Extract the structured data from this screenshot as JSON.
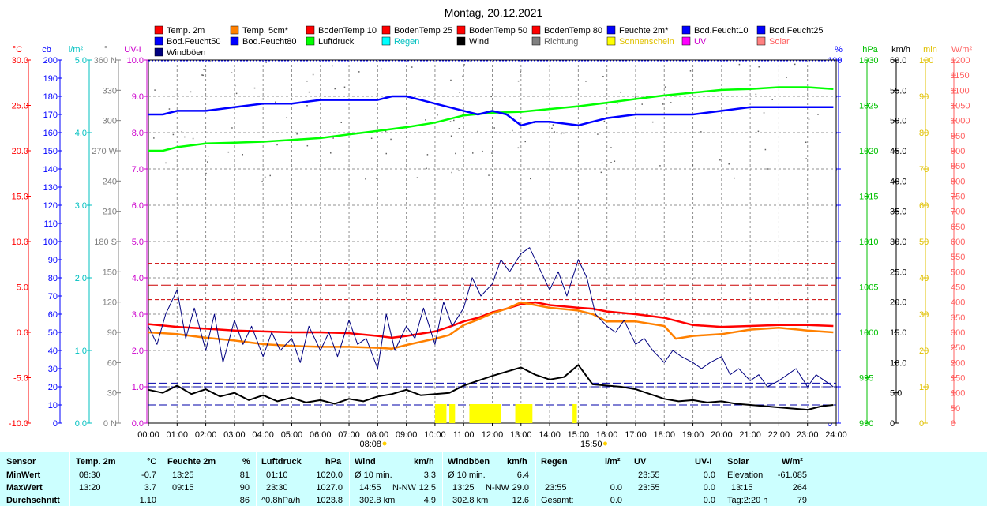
{
  "title": "Montag, 20.12.2021",
  "chart_data": {
    "type": "line",
    "x_ticks": [
      "00:00",
      "01:00",
      "02:00",
      "03:00",
      "04:00",
      "05:00",
      "06:00",
      "07:00",
      "08:00",
      "09:00",
      "10:00",
      "11:00",
      "12:00",
      "13:00",
      "14:00",
      "15:00",
      "16:00",
      "17:00",
      "18:00",
      "19:00",
      "20:00",
      "21:00",
      "22:00",
      "23:00",
      "24:00"
    ],
    "sun_labels": {
      "sunrise": "08:08",
      "sunset": "15:50"
    },
    "legend": [
      {
        "name": "Temp. 2m",
        "color": "#ff0000"
      },
      {
        "name": "Temp. 5cm*",
        "color": "#ff8000"
      },
      {
        "name": "BodenTemp 10",
        "color": "#ff0000"
      },
      {
        "name": "BodenTemp 25",
        "color": "#ff0000"
      },
      {
        "name": "BodenTemp 50",
        "color": "#ff0000"
      },
      {
        "name": "BodenTemp 80",
        "color": "#ff0000"
      },
      {
        "name": "Feuchte 2m*",
        "color": "#0000ff"
      },
      {
        "name": "Bod.Feucht10",
        "color": "#0000ff"
      },
      {
        "name": "Bod.Feucht25",
        "color": "#0000ff"
      },
      {
        "name": "Bod.Feucht50",
        "color": "#0000ff"
      },
      {
        "name": "Bod.Feucht80",
        "color": "#0000ff"
      },
      {
        "name": "Luftdruck",
        "color": "#00ff00"
      },
      {
        "name": "Regen",
        "color": "#00ffff"
      },
      {
        "name": "Wind",
        "color": "#000000"
      },
      {
        "name": "Richtung",
        "color": "#808080"
      },
      {
        "name": "Sonnenschein",
        "color": "#ffff00"
      },
      {
        "name": "UV",
        "color": "#ff00ff"
      },
      {
        "name": "Solar",
        "color": "#ff8080"
      },
      {
        "name": "Windböen",
        "color": "#000080"
      }
    ],
    "axes": {
      "temp": {
        "unit": "°C",
        "color": "#ff0000",
        "ticks": [
          "30.0",
          "25.0",
          "20.0",
          "15.0",
          "10.0",
          "5.0",
          "0.0",
          "-5.0",
          "-10.0"
        ],
        "range": [
          -10,
          30
        ]
      },
      "cloud": {
        "unit": "cb",
        "color": "#0000ff",
        "ticks": [
          "200",
          "190",
          "180",
          "170",
          "160",
          "150",
          "140",
          "130",
          "120",
          "110",
          "100",
          "90",
          "80",
          "70",
          "60",
          "50",
          "40",
          "30",
          "20",
          "10",
          "0"
        ],
        "range": [
          0,
          200
        ]
      },
      "rain": {
        "unit": "l/m²",
        "color": "#00c0c0",
        "ticks": [
          "5.0",
          "4.0",
          "3.0",
          "2.0",
          "1.0",
          "0.0"
        ],
        "range": [
          0,
          5
        ]
      },
      "dir": {
        "unit": "°",
        "color": "#808080",
        "ticks": [
          "360 N",
          "330",
          "300",
          "270 W",
          "240",
          "210",
          "180 S",
          "150",
          "120",
          "90",
          "60",
          "30",
          "0 N"
        ],
        "range": [
          0,
          360
        ]
      },
      "uv": {
        "unit": "UV-I",
        "color": "#cc00cc",
        "ticks": [
          "10.0",
          "9.0",
          "8.0",
          "7.0",
          "6.0",
          "5.0",
          "4.0",
          "3.0",
          "2.0",
          "1.0",
          "0.0"
        ],
        "range": [
          0,
          10
        ]
      },
      "hum": {
        "unit": "%",
        "color": "#0000ff",
        "ticks": [
          "100",
          "90",
          "80",
          "70",
          "60",
          "50",
          "40",
          "30",
          "20",
          "10",
          "0"
        ],
        "range": [
          0,
          100
        ]
      },
      "press": {
        "unit": "hPa",
        "color": "#00c000",
        "ticks": [
          "1030",
          "1025",
          "1020",
          "1015",
          "1010",
          "1005",
          "1000",
          "995",
          "990"
        ],
        "range": [
          990,
          1030
        ]
      },
      "wind": {
        "unit": "km/h",
        "color": "#000000",
        "ticks": [
          "60.0",
          "55.0",
          "50.0",
          "45.0",
          "40.0",
          "35.0",
          "30.0",
          "25.0",
          "20.0",
          "15.0",
          "10.0",
          "5.0",
          "0"
        ],
        "range": [
          0,
          60
        ]
      },
      "sun": {
        "unit": "min",
        "color": "#e0c000",
        "ticks": [
          "100",
          "90",
          "80",
          "70",
          "60",
          "50",
          "40",
          "30",
          "20",
          "10",
          "0"
        ],
        "range": [
          0,
          100
        ]
      },
      "solar": {
        "unit": "W/m²",
        "color": "#ff6060",
        "ticks": [
          "1200",
          "1150",
          "1100",
          "1050",
          "1000",
          "950",
          "900",
          "850",
          "800",
          "750",
          "700",
          "650",
          "600",
          "550",
          "500",
          "450",
          "400",
          "350",
          "300",
          "250",
          "200",
          "150",
          "100",
          "50",
          "0"
        ],
        "range": [
          0,
          1200
        ]
      }
    },
    "series": [
      {
        "name": "Temp. 2m",
        "axis": "temp",
        "x": [
          0,
          1,
          2,
          3,
          4,
          5,
          6,
          7,
          8,
          8.5,
          9,
          10,
          10.5,
          11,
          11.5,
          12,
          12.5,
          13,
          13.5,
          14,
          15,
          15.5,
          16,
          17,
          18,
          19,
          20,
          21,
          22,
          23,
          23.9
        ],
        "y": [
          0.9,
          0.6,
          0.4,
          0.2,
          0.1,
          0.0,
          0.0,
          -0.1,
          -0.4,
          -0.6,
          -0.4,
          0.1,
          0.6,
          1.2,
          1.6,
          2.2,
          2.6,
          3.1,
          3.3,
          3.0,
          2.7,
          2.6,
          2.3,
          2.0,
          1.6,
          0.8,
          0.6,
          0.7,
          0.8,
          0.8,
          0.7
        ],
        "color": "#ff0000"
      },
      {
        "name": "Temp. 5cm*",
        "axis": "temp",
        "x": [
          0,
          1,
          2,
          3,
          4,
          5,
          6,
          7,
          8,
          8.5,
          9,
          10,
          10.5,
          11,
          11.5,
          12,
          12.5,
          13,
          13.5,
          14,
          15,
          15.5,
          16,
          17,
          18,
          18.4,
          19,
          20,
          21,
          22,
          23,
          23.9
        ],
        "y": [
          0.0,
          -0.2,
          -0.6,
          -0.9,
          -1.3,
          -1.5,
          -1.6,
          -1.6,
          -1.7,
          -1.8,
          -1.4,
          -0.7,
          -0.3,
          0.8,
          1.4,
          2.1,
          2.6,
          3.3,
          3.0,
          2.7,
          2.4,
          2.0,
          1.2,
          1.2,
          0.7,
          -0.7,
          -0.4,
          -0.2,
          0.3,
          0.5,
          0.2,
          0.0
        ],
        "color": "#ff8000"
      },
      {
        "name": "Luftdruck",
        "axis": "press",
        "x": [
          0,
          0.5,
          1,
          2,
          3,
          4,
          5,
          6,
          7,
          8,
          9,
          10,
          11,
          12,
          13,
          14,
          15,
          16,
          17,
          18,
          19,
          20,
          21,
          22,
          23,
          23.9
        ],
        "y": [
          1020.0,
          1020.0,
          1020.4,
          1020.8,
          1020.9,
          1021.0,
          1021.2,
          1021.4,
          1021.8,
          1022.2,
          1022.6,
          1023.1,
          1023.9,
          1024.2,
          1024.3,
          1024.6,
          1024.9,
          1025.3,
          1025.7,
          1026.1,
          1026.4,
          1026.7,
          1026.8,
          1027.0,
          1027.0,
          1026.8
        ],
        "color": "#00ff00"
      },
      {
        "name": "Feuchte 2m*",
        "axis": "hum",
        "x": [
          0,
          0.5,
          1,
          2,
          3,
          4,
          5,
          6,
          7,
          8,
          8.5,
          9,
          9.5,
          10,
          10.5,
          11,
          11.5,
          12,
          12.5,
          13,
          13.5,
          14,
          15,
          15.5,
          16,
          17,
          18,
          19,
          20,
          21,
          22,
          23,
          23.9
        ],
        "y": [
          85,
          85,
          86,
          86,
          87,
          88,
          88,
          89,
          89,
          89,
          90,
          90,
          89,
          88,
          87,
          86,
          85,
          86,
          85,
          82,
          83,
          83,
          82,
          83,
          84,
          85,
          85,
          85,
          86,
          87,
          87,
          87,
          87
        ],
        "color": "#0000ff"
      },
      {
        "name": "Wind",
        "axis": "wind",
        "x": [
          0,
          0.5,
          1,
          1.5,
          2,
          2.5,
          3,
          3.5,
          4,
          4.5,
          5,
          5.5,
          6,
          6.5,
          7,
          7.5,
          8,
          8.5,
          9,
          9.5,
          10,
          10.5,
          11,
          11.5,
          12,
          12.5,
          13,
          13.5,
          14,
          14.5,
          15,
          15.5,
          16,
          16.5,
          17,
          17.5,
          18,
          18.5,
          19,
          19.5,
          20,
          20.5,
          21,
          21.5,
          22,
          22.5,
          23,
          23.5,
          23.9
        ],
        "y": [
          5.5,
          5.0,
          6.2,
          4.8,
          5.6,
          4.4,
          5.0,
          3.8,
          4.6,
          3.6,
          4.2,
          3.4,
          3.8,
          3.2,
          4.0,
          3.6,
          4.4,
          4.8,
          5.5,
          4.6,
          4.8,
          5.0,
          6.2,
          7.0,
          7.8,
          8.5,
          9.2,
          8.0,
          7.2,
          7.6,
          9.6,
          6.4,
          6.2,
          6.0,
          5.6,
          4.8,
          4.0,
          3.6,
          3.8,
          3.4,
          3.6,
          3.2,
          3.0,
          2.8,
          2.6,
          2.4,
          2.2,
          2.8,
          3.0
        ],
        "color": "#000000"
      },
      {
        "name": "Windböen",
        "axis": "wind",
        "x": [
          0,
          0.3,
          0.6,
          1,
          1.3,
          1.6,
          2,
          2.3,
          2.6,
          3,
          3.3,
          3.6,
          4,
          4.3,
          4.6,
          5,
          5.3,
          5.6,
          6,
          6.3,
          6.6,
          7,
          7.3,
          7.6,
          8,
          8.3,
          8.6,
          9,
          9.3,
          9.6,
          10,
          10.3,
          10.6,
          11,
          11.3,
          11.6,
          12,
          12.3,
          12.6,
          13,
          13.3,
          13.6,
          14,
          14.3,
          14.6,
          15,
          15.3,
          15.6,
          16,
          16.3,
          16.6,
          17,
          17.3,
          17.6,
          18,
          18.3,
          18.6,
          19,
          19.3,
          19.6,
          20,
          20.3,
          20.6,
          21,
          21.3,
          21.6,
          22,
          22.3,
          22.6,
          23,
          23.3,
          23.6,
          23.9
        ],
        "y": [
          16,
          13,
          18,
          22,
          14,
          19,
          12,
          18,
          10,
          17,
          13,
          16,
          11,
          15,
          12,
          14,
          10,
          16,
          12,
          15,
          11,
          17,
          13,
          14,
          9,
          18,
          12,
          16,
          14,
          19,
          13,
          20,
          16,
          19,
          24,
          21,
          23,
          27,
          25,
          28,
          29,
          26,
          22,
          25,
          21,
          27,
          24,
          18,
          16,
          15,
          17,
          13,
          14,
          12,
          10,
          12,
          11,
          10,
          9,
          10,
          11,
          8,
          9,
          7,
          8,
          6,
          7,
          8,
          9,
          6,
          8,
          7,
          6
        ],
        "color": "#000080"
      }
    ],
    "reference_lines": {
      "temp_dashed": [
        3.4,
        3.8,
        4.4
      ],
      "hum_dashed": [
        10,
        11
      ],
      "press_dashed": [
        1002.0,
        1002.6
      ]
    },
    "sunshine_hours": [
      [
        10.0,
        10.4
      ],
      [
        10.5,
        10.7
      ],
      [
        11.2,
        12.3
      ],
      [
        12.8,
        13.4
      ],
      [
        14.8,
        14.95
      ]
    ]
  },
  "stats": {
    "headers": {
      "sensor": "Sensor",
      "temp": "Temp. 2m",
      "temp_unit": "°C",
      "hum": "Feuchte 2m",
      "hum_unit": "%",
      "press": "Luftdruck",
      "press_unit": "hPa",
      "wind": "Wind",
      "wind_unit": "km/h",
      "gust": "Windböen",
      "gust_unit": "km/h",
      "rain": "Regen",
      "rain_unit": "l/m²",
      "uv": "UV",
      "uv_unit": "UV-I",
      "solar": "Solar",
      "solar_unit": "W/m²"
    },
    "rows": {
      "min": {
        "label": "MinWert",
        "temp_time": "08:30",
        "temp_val": "-0.7",
        "hum_time": "13:25",
        "hum_val": "81",
        "press_time": "01:10",
        "press_val": "1020.0",
        "wind_a": "Ø 10 min.",
        "wind_b": "",
        "wind_val": "3.3",
        "gust_a": "Ø 10 min.",
        "gust_b": "",
        "gust_val": "6.4",
        "rain_time": "",
        "rain_val": "",
        "uv_time": "23:55",
        "uv_val": "0.0",
        "solar_a": "Elevation",
        "solar_val": "-61.085"
      },
      "max": {
        "label": "MaxWert",
        "temp_time": "13:20",
        "temp_val": "3.7",
        "hum_time": "09:15",
        "hum_val": "90",
        "press_time": "23:30",
        "press_val": "1027.0",
        "wind_a": "14:55",
        "wind_b": "N-NW",
        "wind_val": "12.5",
        "gust_a": "13:25",
        "gust_b": "N-NW",
        "gust_val": "29.0",
        "rain_time": "23:55",
        "rain_val": "0.0",
        "uv_time": "23:55",
        "uv_val": "0.0",
        "solar_a": "13:15",
        "solar_val": "264"
      },
      "avg": {
        "label": "Durchschnitt",
        "temp_time": "",
        "temp_val": "1.10",
        "hum_time": "",
        "hum_val": "86",
        "press_time": "^0.8hPa/h",
        "press_val": "1023.8",
        "wind_a": "302.8 km",
        "wind_b": "",
        "wind_val": "4.9",
        "gust_a": "302.8 km",
        "gust_b": "",
        "gust_val": "12.6",
        "rain_time": "Gesamt:",
        "rain_val": "0.0",
        "uv_time": "",
        "uv_val": "0.0",
        "solar_a": "Tag:2:20 h",
        "solar_val": "79"
      }
    }
  }
}
